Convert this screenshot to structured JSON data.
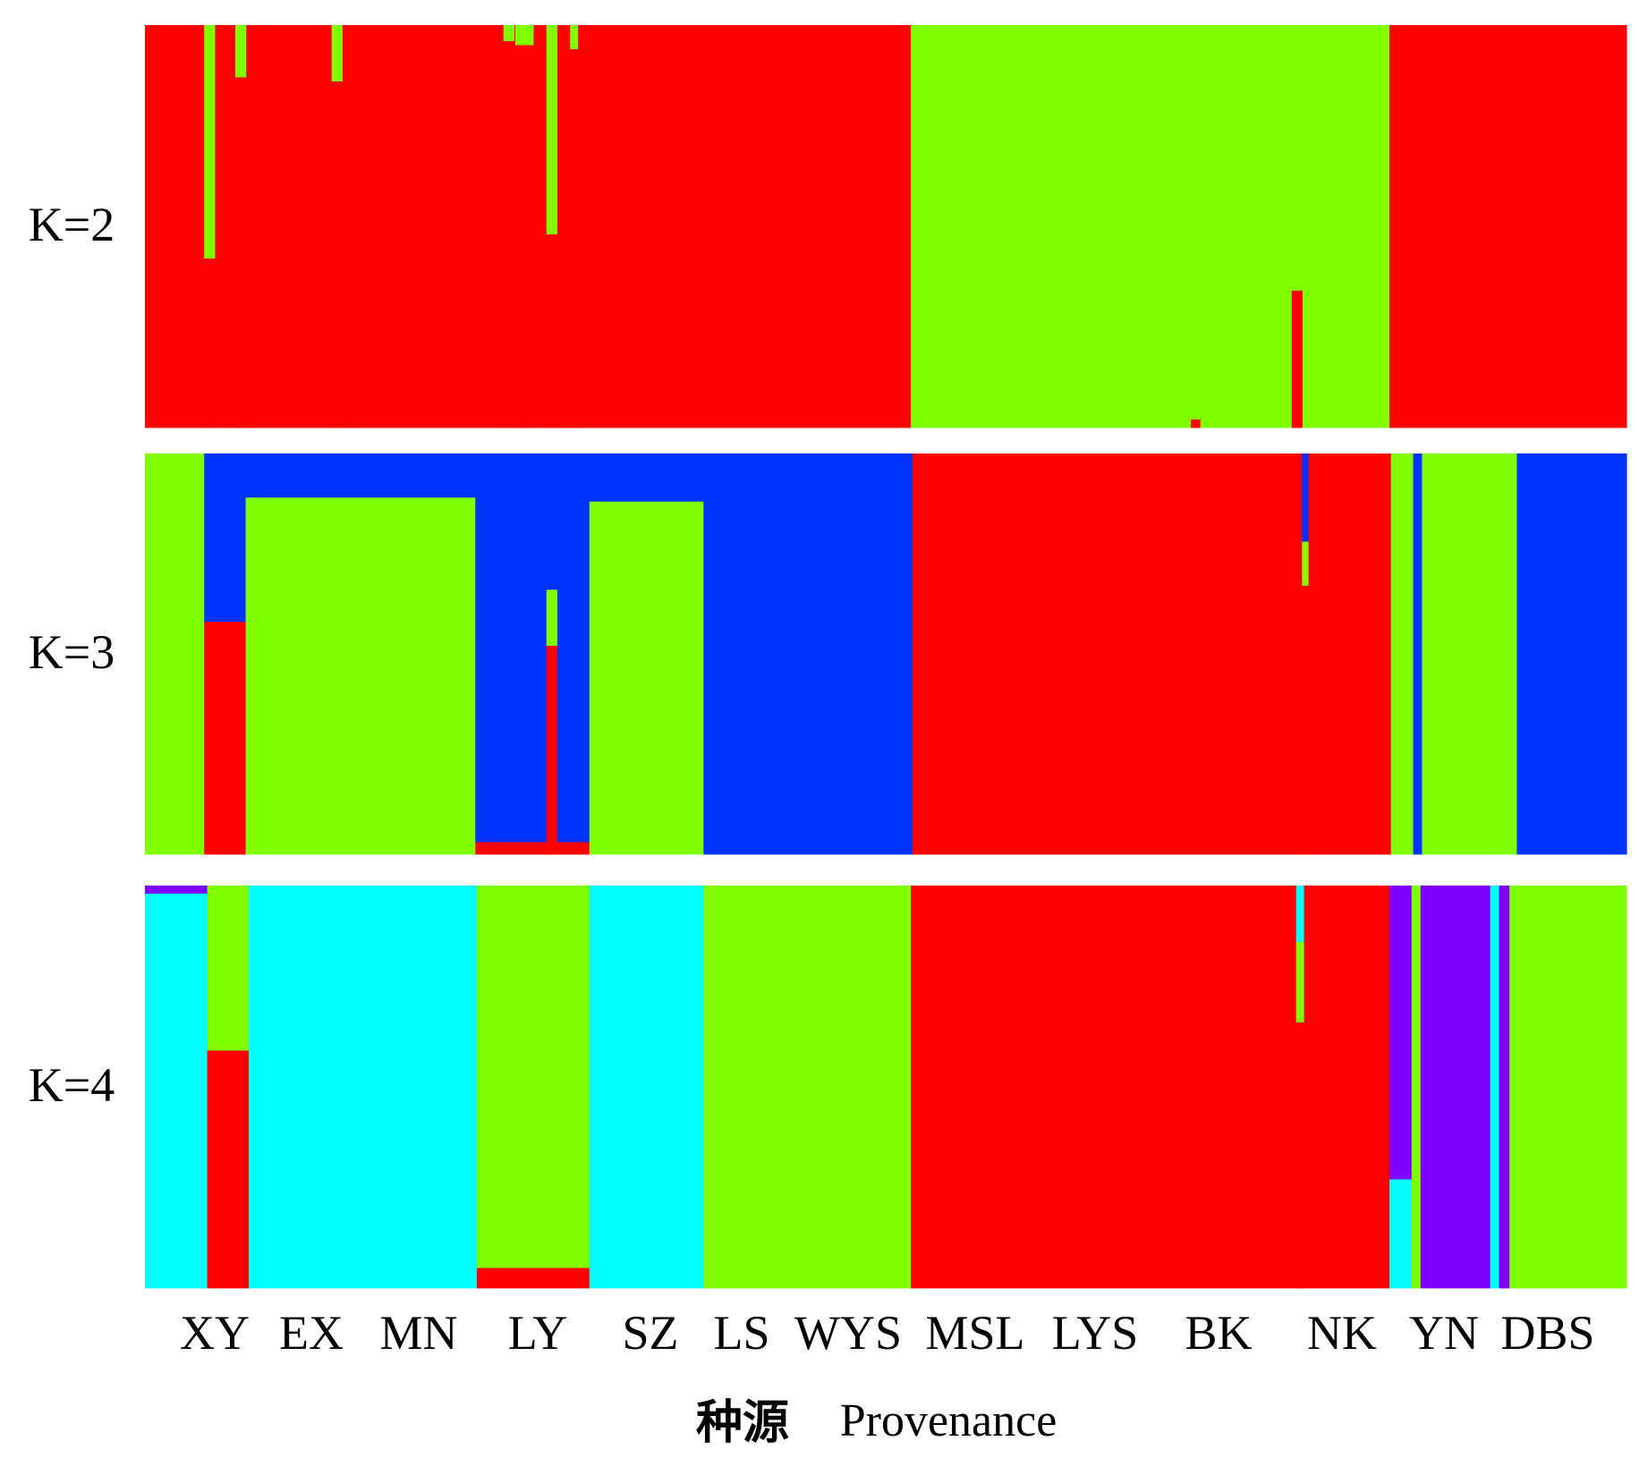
{
  "chart_data": {
    "type": "stacked-bar (STRUCTURE admixture plot)",
    "x_title_zh": "种源",
    "x_title_en": "Provenance",
    "groups": [
      "XY",
      "EX",
      "MN",
      "LY",
      "SZ",
      "LS",
      "WYS",
      "MSL",
      "LYS",
      "BK",
      "NK",
      "YN",
      "DBS"
    ],
    "palette": {
      "red": "#ff0000",
      "green": "#7fff00",
      "blue": "#0033ff",
      "cyan": "#00ffff",
      "purple": "#7f00ff"
    },
    "panels": [
      {
        "label": "K=2",
        "note": "values are fractions of total ancestry (top to bottom of each column)",
        "segments": [
          {
            "x0": 0.0,
            "x1": 0.517,
            "stack": [
              [
                "red",
                1.0
              ]
            ]
          },
          {
            "x0": 0.517,
            "x1": 0.84,
            "stack": [
              [
                "green",
                1.0
              ]
            ]
          },
          {
            "x0": 0.84,
            "x1": 1.0,
            "stack": [
              [
                "red",
                1.0
              ]
            ]
          },
          {
            "x0": 0.04,
            "x1": 0.047,
            "stack": [
              [
                "green",
                0.58
              ],
              [
                "red",
                0.42
              ]
            ]
          },
          {
            "x0": 0.061,
            "x1": 0.068,
            "stack": [
              [
                "green",
                0.13
              ],
              [
                "red",
                0.87
              ]
            ]
          },
          {
            "x0": 0.126,
            "x1": 0.133,
            "stack": [
              [
                "green",
                0.14
              ],
              [
                "red",
                0.86
              ]
            ]
          },
          {
            "x0": 0.242,
            "x1": 0.249,
            "stack": [
              [
                "green",
                0.04
              ],
              [
                "red",
                0.96
              ]
            ]
          },
          {
            "x0": 0.25,
            "x1": 0.262,
            "stack": [
              [
                "green",
                0.05
              ],
              [
                "red",
                0.95
              ]
            ]
          },
          {
            "x0": 0.271,
            "x1": 0.278,
            "stack": [
              [
                "green",
                0.52
              ],
              [
                "red",
                0.48
              ]
            ]
          },
          {
            "x0": 0.287,
            "x1": 0.292,
            "stack": [
              [
                "green",
                0.06
              ],
              [
                "red",
                0.94
              ]
            ]
          },
          {
            "x0": 0.135,
            "x1": 0.142,
            "stack": [
              [
                "green",
                0.0
              ],
              [
                "red",
                1.0
              ]
            ]
          },
          {
            "x0": 0.774,
            "x1": 0.781,
            "stack": [
              [
                "green",
                0.66
              ],
              [
                "red",
                0.34
              ]
            ]
          },
          {
            "x0": 0.706,
            "x1": 0.712,
            "stack": [
              [
                "green",
                0.98
              ],
              [
                "red",
                0.02
              ]
            ]
          }
        ]
      },
      {
        "label": "K=3",
        "segments": [
          {
            "x0": 0.0,
            "x1": 0.04,
            "stack": [
              [
                "green",
                1.0
              ]
            ]
          },
          {
            "x0": 0.04,
            "x1": 0.068,
            "stack": [
              [
                "blue",
                0.42
              ],
              [
                "red",
                0.58
              ]
            ]
          },
          {
            "x0": 0.068,
            "x1": 0.223,
            "stack": [
              [
                "blue",
                0.11
              ],
              [
                "green",
                0.89
              ]
            ]
          },
          {
            "x0": 0.223,
            "x1": 0.3,
            "stack": [
              [
                "blue",
                0.97
              ],
              [
                "red",
                0.03
              ]
            ]
          },
          {
            "x0": 0.271,
            "x1": 0.278,
            "stack": [
              [
                "blue",
                0.34
              ],
              [
                "green",
                0.14
              ],
              [
                "red",
                0.52
              ]
            ]
          },
          {
            "x0": 0.3,
            "x1": 0.377,
            "stack": [
              [
                "blue",
                0.12
              ],
              [
                "green",
                0.88
              ]
            ]
          },
          {
            "x0": 0.377,
            "x1": 0.518,
            "stack": [
              [
                "blue",
                1.0
              ]
            ]
          },
          {
            "x0": 0.518,
            "x1": 0.841,
            "stack": [
              [
                "red",
                1.0
              ]
            ]
          },
          {
            "x0": 0.781,
            "x1": 0.785,
            "stack": [
              [
                "blue",
                0.22
              ],
              [
                "green",
                0.11
              ],
              [
                "red",
                0.67
              ]
            ]
          },
          {
            "x0": 0.841,
            "x1": 0.856,
            "stack": [
              [
                "green",
                1.0
              ]
            ]
          },
          {
            "x0": 0.856,
            "x1": 0.862,
            "stack": [
              [
                "blue",
                1.0
              ]
            ]
          },
          {
            "x0": 0.862,
            "x1": 0.926,
            "stack": [
              [
                "green",
                1.0
              ]
            ]
          },
          {
            "x0": 0.926,
            "x1": 1.0,
            "stack": [
              [
                "blue",
                1.0
              ]
            ]
          }
        ]
      },
      {
        "label": "K=4",
        "segments": [
          {
            "x0": 0.0,
            "x1": 0.042,
            "stack": [
              [
                "purple",
                0.02
              ],
              [
                "cyan",
                0.98
              ]
            ]
          },
          {
            "x0": 0.042,
            "x1": 0.07,
            "stack": [
              [
                "green",
                0.41
              ],
              [
                "red",
                0.59
              ]
            ]
          },
          {
            "x0": 0.07,
            "x1": 0.224,
            "stack": [
              [
                "cyan",
                1.0
              ]
            ]
          },
          {
            "x0": 0.224,
            "x1": 0.3,
            "stack": [
              [
                "green",
                0.95
              ],
              [
                "red",
                0.05
              ]
            ]
          },
          {
            "x0": 0.3,
            "x1": 0.377,
            "stack": [
              [
                "cyan",
                1.0
              ]
            ]
          },
          {
            "x0": 0.377,
            "x1": 0.517,
            "stack": [
              [
                "green",
                1.0
              ]
            ]
          },
          {
            "x0": 0.517,
            "x1": 0.84,
            "stack": [
              [
                "red",
                1.0
              ]
            ]
          },
          {
            "x0": 0.777,
            "x1": 0.782,
            "stack": [
              [
                "cyan",
                0.14
              ],
              [
                "green",
                0.2
              ],
              [
                "red",
                0.66
              ]
            ]
          },
          {
            "x0": 0.84,
            "x1": 0.855,
            "stack": [
              [
                "purple",
                0.73
              ],
              [
                "cyan",
                0.27
              ]
            ]
          },
          {
            "x0": 0.855,
            "x1": 0.861,
            "stack": [
              [
                "green",
                1.0
              ]
            ]
          },
          {
            "x0": 0.861,
            "x1": 0.908,
            "stack": [
              [
                "purple",
                1.0
              ]
            ]
          },
          {
            "x0": 0.908,
            "x1": 0.914,
            "stack": [
              [
                "cyan",
                1.0
              ]
            ]
          },
          {
            "x0": 0.914,
            "x1": 0.921,
            "stack": [
              [
                "purple",
                1.0
              ]
            ]
          },
          {
            "x0": 0.921,
            "x1": 1.0,
            "stack": [
              [
                "green",
                1.0
              ]
            ]
          }
        ]
      }
    ]
  }
}
